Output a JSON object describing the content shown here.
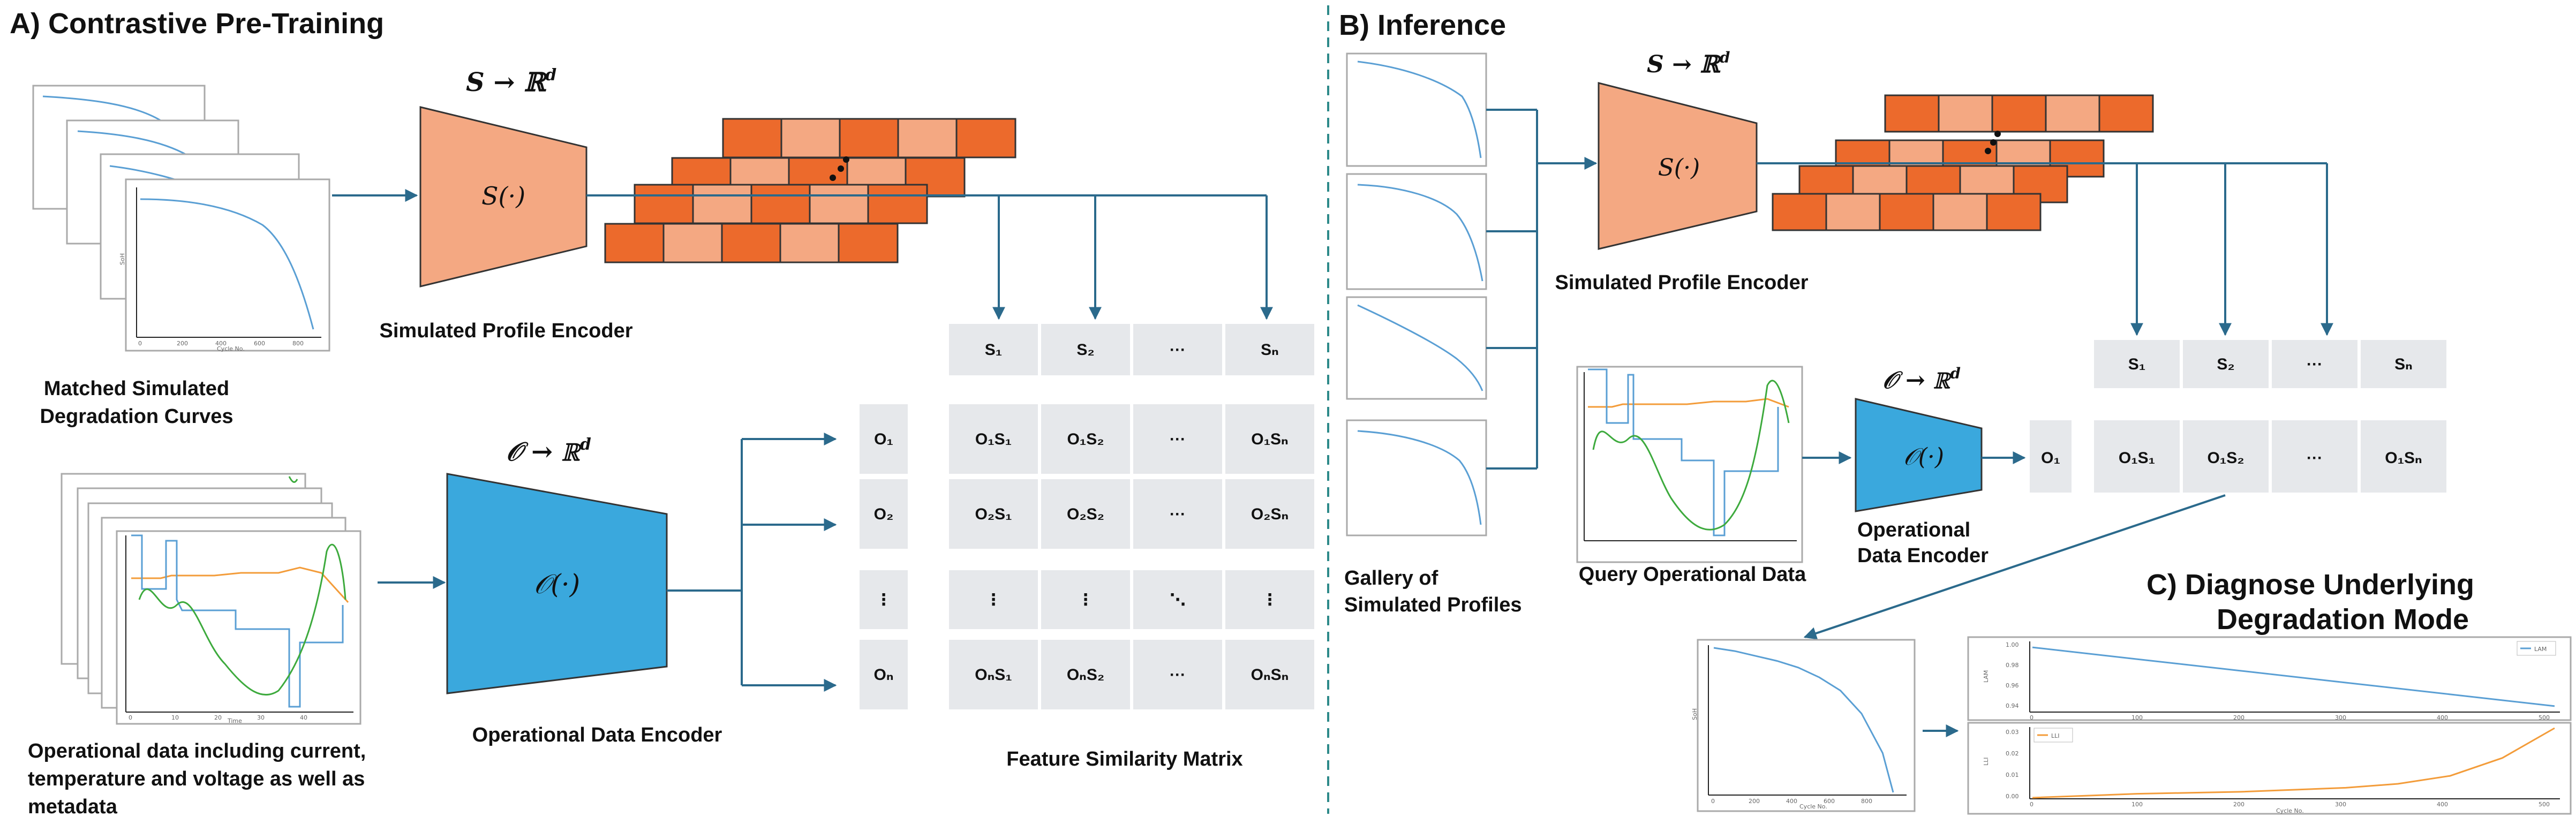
{
  "panel_a": {
    "title": "A) Contrastive Pre-Training",
    "curves_label": [
      "Matched Simulated",
      "Degradation Curves"
    ],
    "sim_encoder_fn": "S(·)",
    "sim_encoder_map": "S → ℝ",
    "sim_encoder_map_sup": "d",
    "sim_encoder_label": "Simulated Profile Encoder",
    "op_encoder_fn": "𝒪(·)",
    "op_encoder_map": "𝒪 → ℝ",
    "op_encoder_map_sup": "d",
    "op_encoder_label": "Operational Data Encoder",
    "op_data_label": [
      "Operational data including current,",
      "temperature and voltage as well as",
      "metadata"
    ],
    "matrix_label": "Feature Similarity Matrix",
    "s_headers": [
      "S₁",
      "S₂",
      "···",
      "Sₙ"
    ],
    "o_headers": [
      "O₁",
      "O₂",
      "⋮",
      "Oₙ"
    ],
    "matrix_rows": [
      [
        "O₁S₁",
        "O₁S₂",
        "···",
        "O₁Sₙ"
      ],
      [
        "O₂S₁",
        "O₂S₂",
        "···",
        "O₂Sₙ"
      ],
      [
        "⋮",
        "⋮",
        "⋱",
        "⋮"
      ],
      [
        "OₙS₁",
        "OₙS₂",
        "···",
        "OₙSₙ"
      ]
    ],
    "plot_ylabel": "SoH",
    "plot_xlabel": "Cycle No.",
    "plot_xticks": [
      "0",
      "200",
      "400",
      "600",
      "800"
    ],
    "op_plot_xlabel": "Time",
    "op_plot_xticks": [
      "0",
      "10",
      "20",
      "30",
      "40"
    ]
  },
  "panel_b": {
    "title": "B) Inference",
    "gallery_label": [
      "Gallery of",
      "Simulated Profiles"
    ],
    "query_label": "Query Operational Data",
    "sim_encoder_fn": "S(·)",
    "sim_encoder_map": "S → ℝ",
    "sim_encoder_map_sup": "d",
    "sim_encoder_label": "Simulated Profile Encoder",
    "op_encoder_fn": "𝒪(·)",
    "op_encoder_map": "𝒪 → ℝ",
    "op_encoder_map_sup": "d",
    "op_encoder_label": [
      "Operational",
      "Data Encoder"
    ],
    "s_headers": [
      "S₁",
      "S₂",
      "···",
      "Sₙ"
    ],
    "o_header": "O₁",
    "row": [
      "O₁S₁",
      "O₁S₂",
      "···",
      "O₁Sₙ"
    ]
  },
  "panel_c": {
    "title": [
      "C) Diagnose Underlying",
      "Degradation Mode"
    ],
    "soh_plot_ylabel": "SoH",
    "soh_plot_xlabel": "Cycle No.",
    "soh_plot_xticks": [
      "0",
      "200",
      "400",
      "600",
      "800"
    ],
    "top_plot_legend": "LAM",
    "top_plot_ylabel": "LAM",
    "top_plot_yticks": [
      "1.00",
      "0.98",
      "0.96",
      "0.94"
    ],
    "bottom_plot_legend": "LLI",
    "bottom_plot_ylabel": "LLI",
    "bottom_plot_yticks": [
      "0.03",
      "0.02",
      "0.01",
      "0.00"
    ],
    "shared_xticks": [
      "0",
      "100",
      "200",
      "300",
      "400",
      "500"
    ],
    "shared_xlabel": "Cycle No."
  },
  "colors": {
    "sim_encoder": "#f4a882",
    "op_encoder": "#3aa8dd",
    "embedding_dark": "#ec6a2c",
    "embedding_light": "#f4a882",
    "arrow": "#2b6a8c",
    "cell_bg": "#e6e8eb",
    "divider": "#2e8a8a",
    "curve_blue": "#5a9fd4",
    "curve_orange": "#f39c3a",
    "curve_green": "#3daa3d"
  },
  "chart_data": [
    {
      "type": "line",
      "title": "",
      "xlabel": "Cycle No.",
      "ylabel": "SoH",
      "x": [
        0,
        100,
        200,
        300,
        400,
        500,
        600,
        700,
        800,
        850
      ],
      "series": [
        {
          "values": [
            1.0,
            0.99,
            0.975,
            0.96,
            0.94,
            0.91,
            0.87,
            0.8,
            0.68,
            0.56
          ]
        }
      ]
    },
    {
      "type": "line",
      "title": "",
      "xlabel": "Cycle No.",
      "ylabel": "LAM",
      "ylim": [
        0.935,
        1.005
      ],
      "legend": "top-right",
      "x": [
        0,
        100,
        200,
        300,
        400,
        500
      ],
      "series": [
        {
          "name": "LAM",
          "values": [
            1.0,
            0.988,
            0.976,
            0.964,
            0.952,
            0.94
          ]
        }
      ]
    },
    {
      "type": "line",
      "title": "",
      "xlabel": "Cycle No.",
      "ylabel": "LLI",
      "ylim": [
        0.0,
        0.035
      ],
      "legend": "top-left",
      "x": [
        0,
        100,
        200,
        300,
        350,
        400,
        450,
        500
      ],
      "series": [
        {
          "name": "LLI",
          "values": [
            0.0,
            0.002,
            0.003,
            0.005,
            0.007,
            0.011,
            0.02,
            0.035
          ]
        }
      ]
    }
  ]
}
